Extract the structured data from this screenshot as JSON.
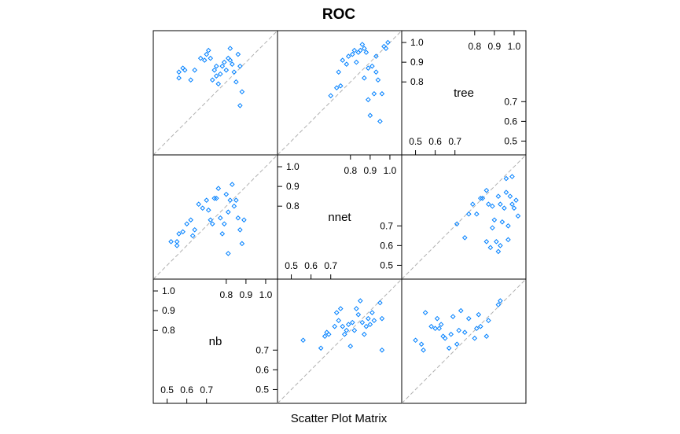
{
  "chart_data": {
    "type": "scatter",
    "title": "ROC",
    "xlabel": "Scatter Plot Matrix",
    "variables": [
      "nb",
      "nnet",
      "tree"
    ],
    "point_color": "#0080ff",
    "reference_line_color": "#b0b0b0",
    "ranges": {
      "nb": [
        0.43,
        1.06
      ],
      "nnet": [
        0.43,
        1.06
      ],
      "tree": [
        0.43,
        1.06
      ]
    },
    "diagonal_labels": [
      {
        "variable": "nb",
        "upper_ticks": [
          "0.8",
          "0.9",
          "1.0"
        ],
        "lower_ticks": [
          "0.5",
          "0.6",
          "0.7"
        ],
        "upper_values": [
          0.8,
          0.9,
          1.0
        ],
        "lower_values": [
          0.5,
          0.6,
          0.7
        ]
      },
      {
        "variable": "nnet",
        "upper_ticks": [
          "0.8",
          "0.9",
          "1.0"
        ],
        "lower_ticks": [
          "0.5",
          "0.6",
          "0.7"
        ],
        "upper_values": [
          0.8,
          0.9,
          1.0
        ],
        "lower_values": [
          0.5,
          0.6,
          0.7
        ]
      },
      {
        "variable": "tree",
        "upper_ticks": [
          "0.8",
          "0.9",
          "1.0"
        ],
        "lower_ticks": [
          "0.5",
          "0.6",
          "0.7"
        ],
        "upper_values": [
          0.8,
          0.9,
          1.0
        ],
        "lower_values": [
          0.5,
          0.6,
          0.7
        ]
      }
    ],
    "panels": [
      {
        "x": "nnet",
        "y": "tree",
        "points": [
          [
            0.7,
            0.73
          ],
          [
            0.73,
            0.77
          ],
          [
            0.75,
            0.78
          ],
          [
            0.74,
            0.85
          ],
          [
            0.76,
            0.91
          ],
          [
            0.78,
            0.89
          ],
          [
            0.79,
            0.93
          ],
          [
            0.81,
            0.94
          ],
          [
            0.82,
            0.96
          ],
          [
            0.83,
            0.9
          ],
          [
            0.84,
            0.95
          ],
          [
            0.85,
            0.96
          ],
          [
            0.86,
            0.99
          ],
          [
            0.87,
            0.97
          ],
          [
            0.88,
            0.95
          ],
          [
            0.89,
            0.87
          ],
          [
            0.89,
            0.71
          ],
          [
            0.9,
            0.63
          ],
          [
            0.91,
            0.88
          ],
          [
            0.92,
            0.74
          ],
          [
            0.93,
            0.93
          ],
          [
            0.95,
            0.6
          ],
          [
            0.96,
            0.74
          ],
          [
            0.97,
            0.98
          ],
          [
            0.98,
            0.97
          ],
          [
            0.99,
            1.0
          ],
          [
            0.94,
            0.81
          ],
          [
            0.93,
            0.85
          ],
          [
            0.87,
            0.82
          ]
        ]
      },
      {
        "x": "nb",
        "y": "tree",
        "points": [
          [
            0.56,
            0.82
          ],
          [
            0.56,
            0.85
          ],
          [
            0.58,
            0.87
          ],
          [
            0.59,
            0.86
          ],
          [
            0.62,
            0.81
          ],
          [
            0.64,
            0.86
          ],
          [
            0.67,
            0.92
          ],
          [
            0.69,
            0.91
          ],
          [
            0.7,
            0.94
          ],
          [
            0.71,
            0.96
          ],
          [
            0.72,
            0.92
          ],
          [
            0.73,
            0.81
          ],
          [
            0.74,
            0.86
          ],
          [
            0.75,
            0.88
          ],
          [
            0.75,
            0.83
          ],
          [
            0.76,
            0.79
          ],
          [
            0.77,
            0.84
          ],
          [
            0.78,
            0.88
          ],
          [
            0.79,
            0.9
          ],
          [
            0.8,
            0.86
          ],
          [
            0.81,
            0.92
          ],
          [
            0.82,
            0.97
          ],
          [
            0.83,
            0.89
          ],
          [
            0.84,
            0.85
          ],
          [
            0.85,
            0.8
          ],
          [
            0.86,
            0.94
          ],
          [
            0.87,
            0.88
          ],
          [
            0.88,
            0.75
          ],
          [
            0.87,
            0.68
          ],
          [
            0.82,
            0.91
          ]
        ]
      },
      {
        "x": "tree",
        "y": "nb",
        "points": [
          [
            0.5,
            0.75
          ],
          [
            0.53,
            0.73
          ],
          [
            0.54,
            0.7
          ],
          [
            0.55,
            0.89
          ],
          [
            0.58,
            0.82
          ],
          [
            0.6,
            0.81
          ],
          [
            0.61,
            0.86
          ],
          [
            0.62,
            0.81
          ],
          [
            0.63,
            0.83
          ],
          [
            0.64,
            0.77
          ],
          [
            0.65,
            0.76
          ],
          [
            0.67,
            0.71
          ],
          [
            0.68,
            0.78
          ],
          [
            0.69,
            0.87
          ],
          [
            0.71,
            0.73
          ],
          [
            0.72,
            0.8
          ],
          [
            0.73,
            0.9
          ],
          [
            0.75,
            0.79
          ],
          [
            0.77,
            0.86
          ],
          [
            0.8,
            0.76
          ],
          [
            0.81,
            0.81
          ],
          [
            0.82,
            0.88
          ],
          [
            0.83,
            0.82
          ],
          [
            0.86,
            0.77
          ],
          [
            0.87,
            0.85
          ],
          [
            0.92,
            0.93
          ],
          [
            0.93,
            0.95
          ]
        ]
      },
      {
        "x": "nnet",
        "y": "nb",
        "points": [
          [
            0.56,
            0.75
          ],
          [
            0.65,
            0.71
          ],
          [
            0.67,
            0.77
          ],
          [
            0.68,
            0.79
          ],
          [
            0.69,
            0.78
          ],
          [
            0.72,
            0.82
          ],
          [
            0.73,
            0.89
          ],
          [
            0.74,
            0.85
          ],
          [
            0.75,
            0.91
          ],
          [
            0.76,
            0.82
          ],
          [
            0.77,
            0.78
          ],
          [
            0.78,
            0.8
          ],
          [
            0.79,
            0.83
          ],
          [
            0.8,
            0.72
          ],
          [
            0.81,
            0.84
          ],
          [
            0.82,
            0.8
          ],
          [
            0.83,
            0.91
          ],
          [
            0.84,
            0.88
          ],
          [
            0.85,
            0.95
          ],
          [
            0.86,
            0.84
          ],
          [
            0.87,
            0.78
          ],
          [
            0.88,
            0.82
          ],
          [
            0.89,
            0.86
          ],
          [
            0.9,
            0.83
          ],
          [
            0.91,
            0.89
          ],
          [
            0.92,
            0.85
          ],
          [
            0.95,
            0.94
          ],
          [
            0.96,
            0.7
          ],
          [
            0.96,
            0.86
          ]
        ]
      },
      {
        "x": "tree",
        "y": "nnet",
        "points": [
          [
            0.71,
            0.71
          ],
          [
            0.75,
            0.64
          ],
          [
            0.77,
            0.76
          ],
          [
            0.79,
            0.81
          ],
          [
            0.81,
            0.76
          ],
          [
            0.83,
            0.84
          ],
          [
            0.84,
            0.84
          ],
          [
            0.86,
            0.88
          ],
          [
            0.87,
            0.81
          ],
          [
            0.89,
            0.8
          ],
          [
            0.89,
            0.69
          ],
          [
            0.9,
            0.73
          ],
          [
            0.91,
            0.62
          ],
          [
            0.92,
            0.85
          ],
          [
            0.93,
            0.81
          ],
          [
            0.95,
            0.79
          ],
          [
            0.96,
            0.87
          ],
          [
            0.98,
            0.85
          ],
          [
            0.99,
            0.81
          ],
          [
            1.0,
            0.79
          ],
          [
            1.01,
            0.83
          ],
          [
            1.02,
            0.75
          ],
          [
            0.94,
            0.72
          ],
          [
            0.97,
            0.7
          ],
          [
            0.86,
            0.62
          ],
          [
            0.88,
            0.59
          ],
          [
            0.92,
            0.57
          ],
          [
            0.96,
            0.94
          ],
          [
            0.99,
            0.95
          ],
          [
            0.97,
            0.63
          ],
          [
            0.93,
            0.6
          ]
        ]
      },
      {
        "x": "nb",
        "y": "nnet",
        "points": [
          [
            0.52,
            0.62
          ],
          [
            0.55,
            0.6
          ],
          [
            0.55,
            0.62
          ],
          [
            0.56,
            0.66
          ],
          [
            0.58,
            0.67
          ],
          [
            0.6,
            0.71
          ],
          [
            0.62,
            0.73
          ],
          [
            0.63,
            0.65
          ],
          [
            0.64,
            0.68
          ],
          [
            0.66,
            0.81
          ],
          [
            0.68,
            0.79
          ],
          [
            0.7,
            0.83
          ],
          [
            0.71,
            0.78
          ],
          [
            0.72,
            0.73
          ],
          [
            0.73,
            0.71
          ],
          [
            0.74,
            0.84
          ],
          [
            0.75,
            0.84
          ],
          [
            0.76,
            0.89
          ],
          [
            0.77,
            0.74
          ],
          [
            0.78,
            0.66
          ],
          [
            0.79,
            0.71
          ],
          [
            0.8,
            0.86
          ],
          [
            0.81,
            0.77
          ],
          [
            0.82,
            0.83
          ],
          [
            0.83,
            0.91
          ],
          [
            0.84,
            0.8
          ],
          [
            0.85,
            0.83
          ],
          [
            0.86,
            0.74
          ],
          [
            0.87,
            0.68
          ],
          [
            0.88,
            0.61
          ],
          [
            0.89,
            0.73
          ],
          [
            0.81,
            0.56
          ]
        ]
      }
    ]
  }
}
